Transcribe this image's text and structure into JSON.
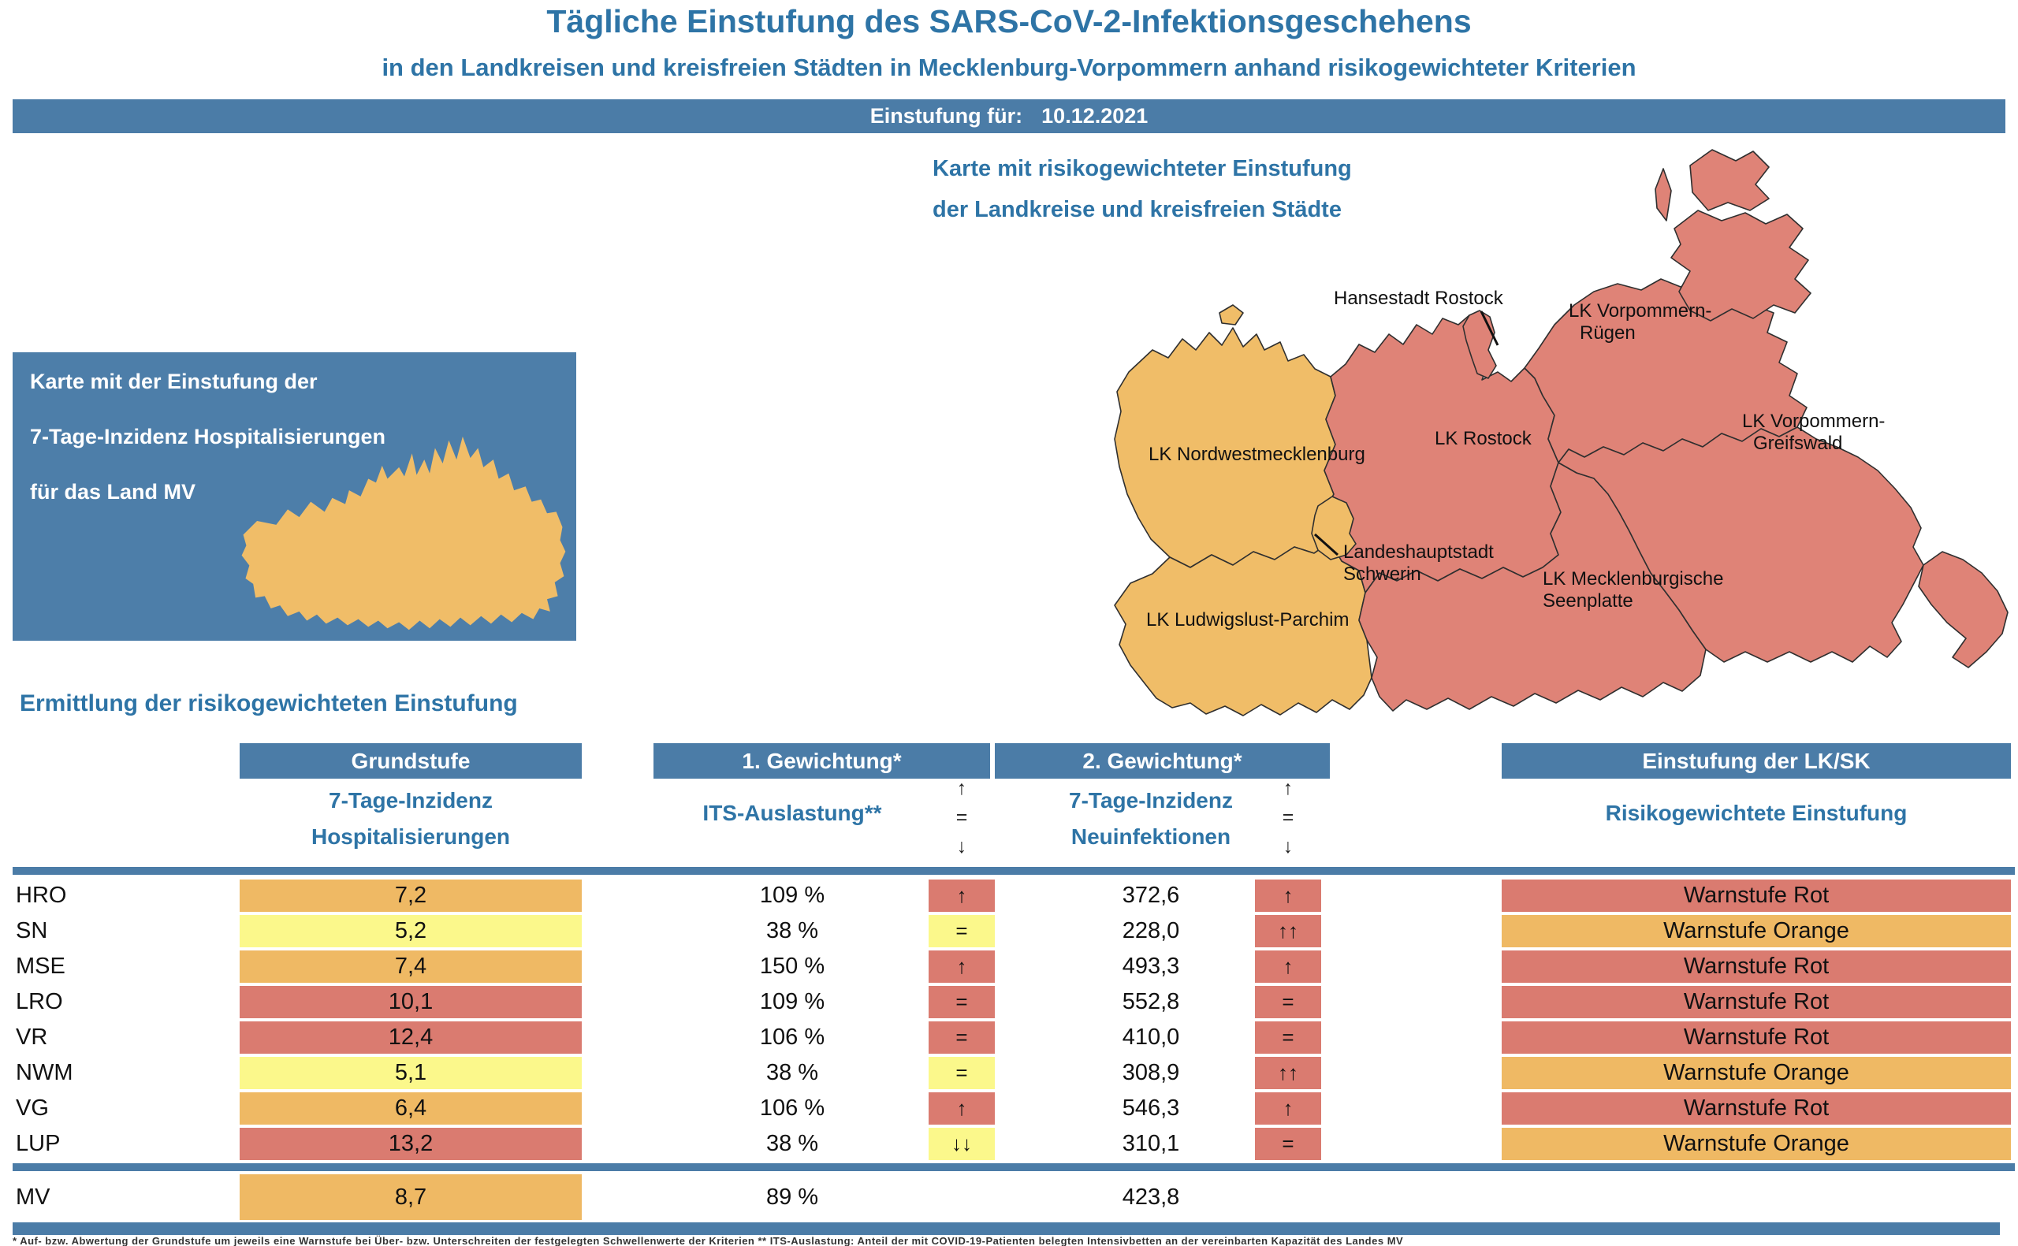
{
  "header": {
    "title": "Tägliche Einstufung des SARS-CoV-2-Infektionsgeschehens",
    "subtitle": "in den Landkreisen und kreisfreien Städten in Mecklenburg-Vorpommern anhand risikogewichteter Kriterien",
    "banner_label": "Einstufung für:",
    "banner_date": "10.12.2021"
  },
  "left_map": {
    "caption_line1": "Karte mit der Einstufung der",
    "caption_line2": "7-Tage-Inzidenz Hospitalisierungen",
    "caption_line3": "für das Land MV",
    "state_color": "#f0bd68",
    "box_color": "#4d7ea9"
  },
  "right_map": {
    "title_line1": "Karte mit risikogewichteter Einstufung",
    "title_line2": "der Landkreise und kreisfreien Städte",
    "labels": {
      "hro": "Hansestadt Rostock",
      "vr1": "LK Vorpommern-",
      "vr2": "Rügen",
      "ro": "LK Rostock",
      "vg1": "LK Vorpommern-",
      "vg2": "Greifswald",
      "nwm": "LK Nordwestmecklenburg",
      "sn1": "Landeshauptstadt",
      "sn2": "Schwerin",
      "lup": "LK Ludwigslust-Parchim",
      "mse1": "LK Mecklenburgische",
      "mse2": "Seenplatte"
    },
    "region_colors": {
      "red": "#df8377",
      "orange": "#f0bd68"
    },
    "region_status": {
      "hansestadt_rostock": "red",
      "lk_rostock": "red",
      "lk_vorpommern_ruegen": "red",
      "lk_vorpommern_greifswald": "red",
      "lk_mecklenburgische_seenplatte": "red",
      "lk_nordwestmecklenburg": "orange",
      "landeshauptstadt_schwerin": "orange",
      "lk_ludwigslust_parchim": "orange"
    }
  },
  "table": {
    "section_title": "Ermittlung der risikogewichteten Einstufung",
    "col_headers": {
      "grundstufe": "Grundstufe",
      "gewichtung1": "1. Gewichtung*",
      "gewichtung2": "2. Gewichtung*",
      "einstufung": "Einstufung der LK/SK"
    },
    "sub_headers": {
      "grund_line1": "7-Tage-Inzidenz",
      "grund_line2": "Hospitalisierungen",
      "its": "ITS-Auslastung**",
      "neu_line1": "7-Tage-Inzidenz",
      "neu_line2": "Neuinfektionen",
      "einstufung": "Risikogewichtete Einstufung",
      "up": "↑",
      "eq": "=",
      "down": "↓"
    },
    "level_colors": {
      "red": "#da7b70",
      "orange": "#efb964",
      "yellow": "#fbf88b"
    },
    "rows": [
      {
        "code": "HRO",
        "hosp": "7,2",
        "hosp_level": "orange",
        "its": "109 %",
        "its_trend": "↑",
        "its_trend_level": "red",
        "neu": "372,6",
        "neu_trend": "↑",
        "neu_trend_level": "red",
        "rating": "Warnstufe Rot",
        "rating_level": "red"
      },
      {
        "code": "SN",
        "hosp": "5,2",
        "hosp_level": "yellow",
        "its": "38 %",
        "its_trend": "=",
        "its_trend_level": "yellow",
        "neu": "228,0",
        "neu_trend": "↑↑",
        "neu_trend_level": "red",
        "rating": "Warnstufe Orange",
        "rating_level": "orange"
      },
      {
        "code": "MSE",
        "hosp": "7,4",
        "hosp_level": "orange",
        "its": "150 %",
        "its_trend": "↑",
        "its_trend_level": "red",
        "neu": "493,3",
        "neu_trend": "↑",
        "neu_trend_level": "red",
        "rating": "Warnstufe Rot",
        "rating_level": "red"
      },
      {
        "code": "LRO",
        "hosp": "10,1",
        "hosp_level": "red",
        "its": "109 %",
        "its_trend": "=",
        "its_trend_level": "red",
        "neu": "552,8",
        "neu_trend": "=",
        "neu_trend_level": "red",
        "rating": "Warnstufe Rot",
        "rating_level": "red"
      },
      {
        "code": "VR",
        "hosp": "12,4",
        "hosp_level": "red",
        "its": "106 %",
        "its_trend": "=",
        "its_trend_level": "red",
        "neu": "410,0",
        "neu_trend": "=",
        "neu_trend_level": "red",
        "rating": "Warnstufe Rot",
        "rating_level": "red"
      },
      {
        "code": "NWM",
        "hosp": "5,1",
        "hosp_level": "yellow",
        "its": "38 %",
        "its_trend": "=",
        "its_trend_level": "yellow",
        "neu": "308,9",
        "neu_trend": "↑↑",
        "neu_trend_level": "red",
        "rating": "Warnstufe Orange",
        "rating_level": "orange"
      },
      {
        "code": "VG",
        "hosp": "6,4",
        "hosp_level": "orange",
        "its": "106 %",
        "its_trend": "↑",
        "its_trend_level": "red",
        "neu": "546,3",
        "neu_trend": "↑",
        "neu_trend_level": "red",
        "rating": "Warnstufe Rot",
        "rating_level": "red"
      },
      {
        "code": "LUP",
        "hosp": "13,2",
        "hosp_level": "red",
        "its": "38 %",
        "its_trend": "↓↓",
        "its_trend_level": "yellow",
        "neu": "310,1",
        "neu_trend": "=",
        "neu_trend_level": "red",
        "rating": "Warnstufe Orange",
        "rating_level": "orange"
      }
    ],
    "summary_row": {
      "code": "MV",
      "hosp": "8,7",
      "hosp_level": "orange",
      "its": "89 %",
      "neu": "423,8"
    }
  },
  "footnote": "* Auf- bzw. Abwertung der Grundstufe um jeweils eine Warnstufe bei Über- bzw. Unterschreiten der festgelegten Schwellenwerte der Kriterien      ** ITS-Auslastung: Anteil der mit COVID-19-Patienten belegten Intensivbetten an der vereinbarten Kapazität des Landes MV"
}
